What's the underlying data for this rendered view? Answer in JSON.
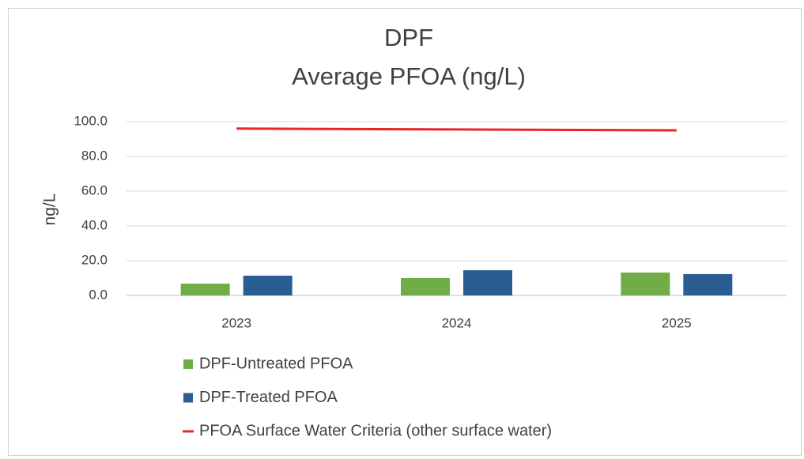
{
  "chart_data": {
    "type": "bar",
    "title": "DPF",
    "subtitle": "Average PFOA (ng/L)",
    "y_label": "ng/L",
    "categories": [
      "2023",
      "2024",
      "2025"
    ],
    "series": [
      {
        "name": "DPF-Untreated PFOA",
        "color": "#70ad47",
        "values": [
          6.8,
          10,
          13.2
        ]
      },
      {
        "name": "DPF-Treated PFOA",
        "color": "#2a5e93",
        "values": [
          11.4,
          14.5,
          12.3
        ]
      },
      {
        "name": "PFOA Surface Water Criteria (other surface water)",
        "color": "#e8262a",
        "type": "line",
        "values": [
          96,
          95.5,
          95
        ]
      }
    ],
    "ylim": [
      0,
      100
    ],
    "yticks": [
      {
        "value": 0,
        "label": "0.0"
      },
      {
        "value": 20,
        "label": "20.0"
      },
      {
        "value": 40,
        "label": "40.0"
      },
      {
        "value": 60,
        "label": "60.0"
      },
      {
        "value": 80,
        "label": "80.0"
      },
      {
        "value": 100,
        "label": "100.0"
      }
    ],
    "grid": true,
    "legend": "bottom-left"
  }
}
